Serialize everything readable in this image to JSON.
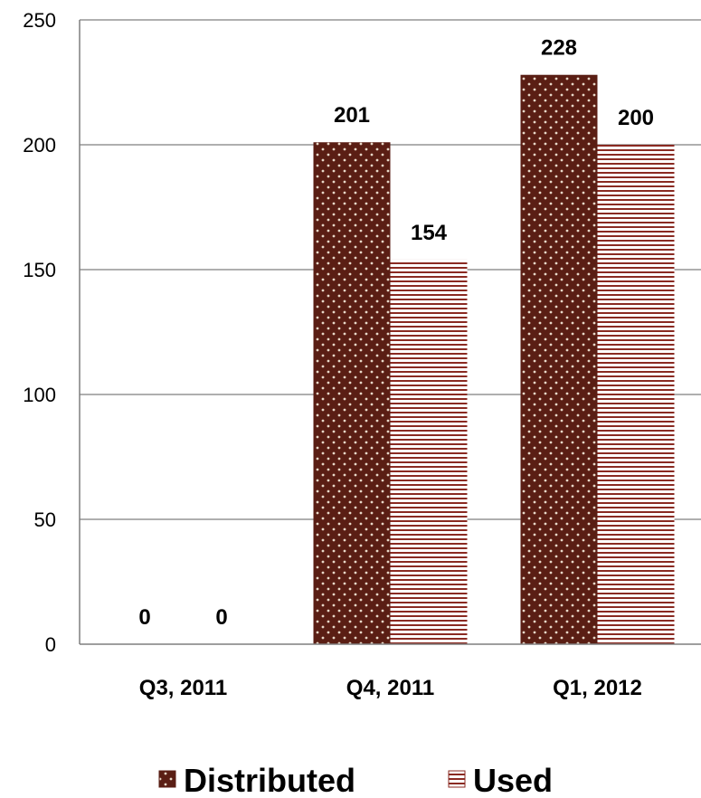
{
  "colors": {
    "distributed": "#5a1e14",
    "distributed_dots": "#e8d8c8",
    "used_line": "#8a2a22",
    "gridline": "#7f7f7f",
    "axis": "#7f7f7f"
  },
  "chart_data": {
    "type": "bar",
    "title": "",
    "xlabel": "",
    "ylabel": "",
    "categories": [
      "Q3, 2011",
      "Q4, 2011",
      "Q1, 2012"
    ],
    "series": [
      {
        "name": "Distributed",
        "values": [
          0,
          201,
          228
        ],
        "pattern": "dotted"
      },
      {
        "name": "Used",
        "values": [
          0,
          154,
          200
        ],
        "pattern": "horizontal-stripes"
      }
    ],
    "ylim": [
      0,
      250
    ],
    "yticks": [
      0,
      50,
      100,
      150,
      200,
      250
    ],
    "ytick_labels": [
      "0",
      "50",
      "100",
      "150",
      "200",
      "250"
    ],
    "grid": true,
    "data_labels": true,
    "legend": {
      "position": "bottom",
      "entries": [
        "Distributed",
        "Used"
      ]
    }
  }
}
